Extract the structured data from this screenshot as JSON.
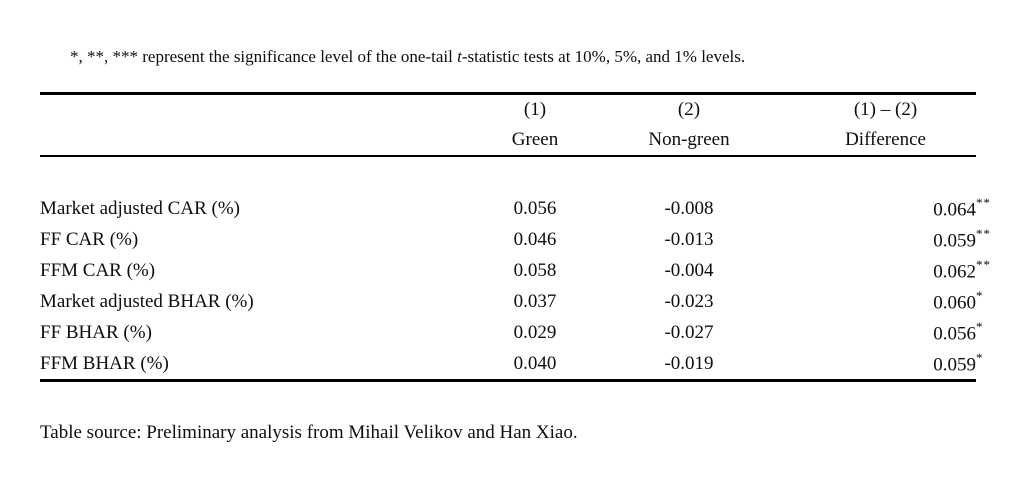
{
  "note": {
    "prefix": "*, **, *** represent the significance level of the one-tail ",
    "italic_term": "t",
    "suffix": "-statistic tests at 10%, 5%, and 1% levels."
  },
  "table": {
    "columns": [
      {
        "number": "(1)",
        "label": "Green"
      },
      {
        "number": "(2)",
        "label": "Non-green"
      },
      {
        "number": "(1) – (2)",
        "label": "Difference"
      }
    ],
    "rows": [
      {
        "label": "Market adjusted CAR (%)",
        "green": "0.056",
        "non_green": "-0.008",
        "difference": "0.064",
        "stars": "**"
      },
      {
        "label": "FF CAR (%)",
        "green": "0.046",
        "non_green": "-0.013",
        "difference": "0.059",
        "stars": "**"
      },
      {
        "label": "FFM CAR (%)",
        "green": "0.058",
        "non_green": "-0.004",
        "difference": "0.062",
        "stars": "**"
      },
      {
        "label": "Market adjusted BHAR (%)",
        "green": "0.037",
        "non_green": "-0.023",
        "difference": "0.060",
        "stars": "*"
      },
      {
        "label": "FF BHAR (%)",
        "green": "0.029",
        "non_green": "-0.027",
        "difference": "0.056",
        "stars": "*"
      },
      {
        "label": "FFM BHAR (%)",
        "green": "0.040",
        "non_green": "-0.019",
        "difference": "0.059",
        "stars": "*"
      }
    ]
  },
  "source_line": "Table source: Preliminary analysis from Mihail Velikov and Han Xiao."
}
